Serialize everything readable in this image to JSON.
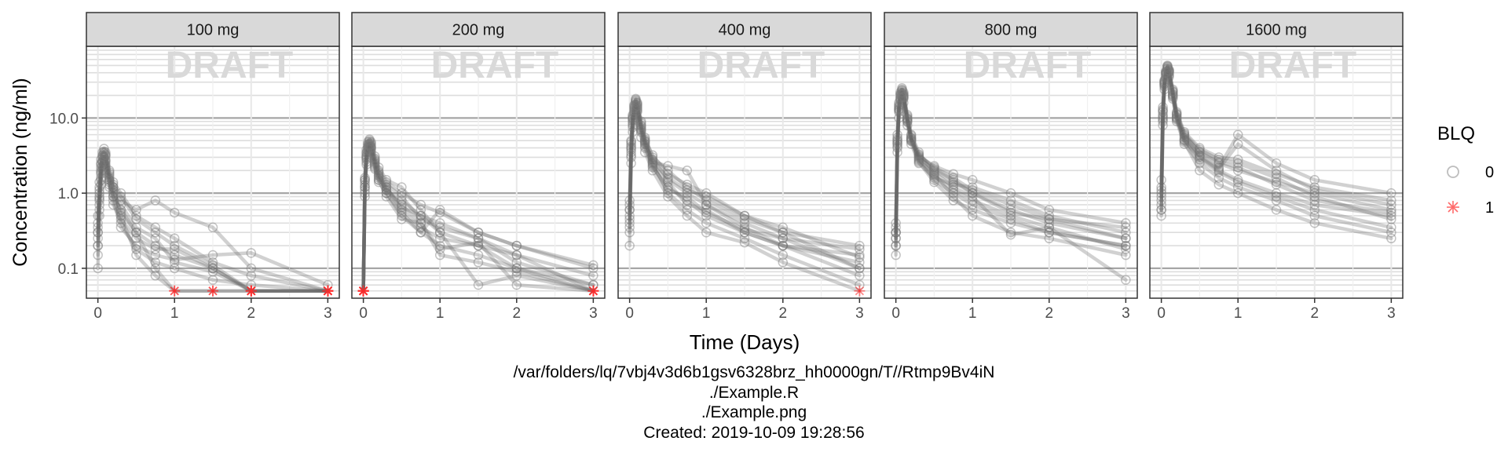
{
  "chart_data": {
    "type": "line",
    "ylabel": "Concentration (ng/ml)",
    "xlabel": "Time (Days)",
    "watermark": "DRAFT",
    "y_scale": "log10",
    "ylim": [
      0.04,
      90
    ],
    "xlim": [
      -0.15,
      3.15
    ],
    "y_ticks": [
      0.1,
      1.0,
      10.0
    ],
    "y_tick_labels": [
      "0.1",
      "1.0",
      "10.0"
    ],
    "x_ticks": [
      0,
      1,
      2,
      3
    ],
    "x_tick_labels": [
      "0",
      "1",
      "2",
      "3"
    ],
    "legend": {
      "title": "BLQ",
      "placement": "right",
      "entries": [
        {
          "label": "0",
          "symbol": "circle",
          "color": "#999999"
        },
        {
          "label": "1",
          "symbol": "asterisk",
          "color": "#ff3333"
        }
      ]
    },
    "line_color": "#666666",
    "blq_value": 0.05,
    "times": [
      0,
      0.02,
      0.04,
      0.06,
      0.08,
      0.1,
      0.15,
      0.2,
      0.3,
      0.5,
      0.75,
      1,
      1.5,
      2,
      3
    ],
    "panels": [
      {
        "label": "100 mg",
        "subjects": [
          [
            0.4,
            1.2,
            2.5,
            3.2,
            3.6,
            3.3,
            1.5,
            0.9,
            0.4,
            0.18,
            0.12,
            0.1,
            0.07,
            0.06,
            0.05
          ],
          [
            0.2,
            0.8,
            1.8,
            2.6,
            3.0,
            2.7,
            1.6,
            1.2,
            0.8,
            0.6,
            0.8,
            0.55,
            0.35,
            0.1,
            0.05
          ],
          [
            0.3,
            1.0,
            2.2,
            3.0,
            3.4,
            3.1,
            1.8,
            1.3,
            0.9,
            0.45,
            0.3,
            0.2,
            0.11,
            0.05,
            0.05
          ],
          [
            0.1,
            0.5,
            1.3,
            2.0,
            2.4,
            2.1,
            1.3,
            0.9,
            0.6,
            0.3,
            0.2,
            0.15,
            0.1,
            0.05,
            0.05
          ],
          [
            0.5,
            1.4,
            2.8,
            3.5,
            3.9,
            3.5,
            2.0,
            1.2,
            0.5,
            0.15,
            0.08,
            0.05,
            0.05,
            0.05,
            0.05
          ],
          [
            0.2,
            0.7,
            1.6,
            2.3,
            2.7,
            2.4,
            1.4,
            1.0,
            0.7,
            0.35,
            0.25,
            0.12,
            0.09,
            0.05,
            0.05
          ],
          [
            0.3,
            0.9,
            2.0,
            2.7,
            3.1,
            2.8,
            1.5,
            0.8,
            0.35,
            0.2,
            0.15,
            0.13,
            0.15,
            0.16,
            0.06
          ],
          [
            0.15,
            0.6,
            1.5,
            2.2,
            2.5,
            2.3,
            1.2,
            0.7,
            0.45,
            0.25,
            0.18,
            0.18,
            0.1,
            0.05,
            0.05
          ],
          [
            0.25,
            0.85,
            1.9,
            2.6,
            3.0,
            2.6,
            1.7,
            1.1,
            0.55,
            0.3,
            0.1,
            0.05,
            0.05,
            0.05,
            0.05
          ],
          [
            0.35,
            1.1,
            2.4,
            3.1,
            3.5,
            3.2,
            1.9,
            1.4,
            1.0,
            0.5,
            0.35,
            0.25,
            0.12,
            0.08,
            0.05
          ]
        ]
      },
      {
        "label": "200 mg",
        "subjects": [
          [
            0.05,
            1.5,
            3.5,
            4.5,
            5.0,
            4.6,
            2.8,
            1.8,
            1.0,
            0.5,
            0.3,
            0.2,
            0.15,
            0.1,
            0.05
          ],
          [
            0.05,
            1.2,
            3.0,
            4.0,
            4.4,
            4.0,
            2.5,
            1.6,
            1.1,
            0.8,
            0.5,
            0.4,
            0.25,
            0.12,
            0.06
          ],
          [
            0.05,
            1.4,
            3.2,
            4.2,
            4.6,
            4.2,
            2.9,
            2.0,
            1.4,
            1.0,
            0.7,
            0.55,
            0.3,
            0.2,
            0.1
          ],
          [
            0.05,
            1.0,
            2.6,
            3.6,
            4.0,
            3.7,
            2.2,
            1.5,
            1.2,
            0.6,
            0.35,
            0.25,
            0.2,
            0.15,
            0.05
          ],
          [
            0.05,
            1.6,
            3.8,
            4.8,
            5.2,
            4.8,
            3.1,
            2.2,
            1.5,
            1.2,
            0.6,
            0.3,
            0.06,
            0.08,
            0.05
          ],
          [
            0.05,
            1.1,
            2.8,
            3.8,
            4.2,
            3.9,
            2.4,
            1.7,
            1.3,
            0.9,
            0.45,
            0.35,
            0.25,
            0.15,
            0.08
          ],
          [
            0.05,
            1.3,
            3.1,
            4.1,
            4.5,
            4.1,
            2.6,
            1.9,
            1.1,
            0.7,
            0.4,
            0.18,
            0.22,
            0.06,
            0.05
          ],
          [
            0.05,
            0.9,
            2.4,
            3.4,
            3.8,
            3.5,
            2.1,
            1.4,
            1.0,
            0.55,
            0.3,
            0.6,
            0.3,
            0.2,
            0.11
          ],
          [
            0.05,
            1.5,
            3.4,
            4.4,
            4.8,
            4.4,
            2.7,
            1.7,
            1.2,
            0.65,
            0.5,
            0.3,
            0.2,
            0.1,
            0.06
          ],
          [
            0.05,
            1.2,
            2.9,
            3.9,
            4.3,
            4.0,
            2.3,
            1.5,
            0.9,
            0.45,
            0.4,
            0.15,
            0.12,
            0.09,
            0.05
          ]
        ]
      },
      {
        "label": "400 mg",
        "subjects": [
          [
            0.6,
            4.5,
            10,
            14,
            17,
            15,
            8.0,
            5.0,
            2.5,
            1.0,
            0.6,
            0.4,
            0.25,
            0.15,
            0.06
          ],
          [
            0.4,
            3.5,
            8.5,
            12,
            15,
            13,
            7.0,
            4.5,
            2.8,
            1.5,
            1.0,
            0.7,
            0.4,
            0.25,
            0.1
          ],
          [
            0.8,
            5.0,
            11,
            15,
            18,
            16,
            9.0,
            5.5,
            3.0,
            2.0,
            1.2,
            0.8,
            0.45,
            0.3,
            0.2
          ],
          [
            0.3,
            3.0,
            7.5,
            11,
            13,
            12,
            6.5,
            4.0,
            2.2,
            1.2,
            0.8,
            0.5,
            0.3,
            0.2,
            0.12
          ],
          [
            0.5,
            4.0,
            9.5,
            13,
            16,
            14,
            7.5,
            4.8,
            2.6,
            2.3,
            2.0,
            0.7,
            0.35,
            0.2,
            0.08
          ],
          [
            0.2,
            2.5,
            6.5,
            9.5,
            11,
            10,
            5.5,
            3.5,
            2.0,
            0.9,
            0.5,
            0.3,
            0.22,
            0.12,
            0.05
          ],
          [
            0.7,
            4.8,
            10.5,
            14.5,
            17.5,
            15.5,
            8.5,
            5.2,
            3.2,
            1.8,
            1.3,
            1.0,
            0.5,
            0.35,
            0.14
          ],
          [
            0.45,
            3.8,
            9.0,
            12.5,
            15,
            13.5,
            7.2,
            4.6,
            2.4,
            1.4,
            0.7,
            0.6,
            0.3,
            0.2,
            0.15
          ],
          [
            0.35,
            3.2,
            8.0,
            11.5,
            14,
            12.5,
            6.8,
            4.2,
            2.3,
            1.1,
            0.9,
            0.55,
            0.33,
            0.25,
            0.18
          ],
          [
            0.6,
            4.2,
            9.8,
            13.5,
            16.5,
            14.5,
            7.8,
            4.9,
            2.7,
            1.6,
            1.1,
            0.9,
            0.5,
            0.3,
            0.1
          ]
        ]
      },
      {
        "label": "800 mg",
        "subjects": [
          [
            0.3,
            5.0,
            14,
            20,
            23,
            20,
            10,
            5.5,
            2.8,
            1.5,
            1.0,
            0.7,
            0.45,
            0.3,
            0.2
          ],
          [
            0.2,
            4.0,
            12,
            17,
            20,
            18,
            9.0,
            5.0,
            3.0,
            2.0,
            1.4,
            1.0,
            0.6,
            0.4,
            0.25
          ],
          [
            0.4,
            6.0,
            16,
            22,
            25,
            22,
            11,
            6.0,
            3.5,
            1.8,
            0.9,
            0.5,
            0.3,
            0.25,
            0.15
          ],
          [
            0.15,
            3.5,
            10,
            15,
            18,
            16,
            8.0,
            4.5,
            2.5,
            1.6,
            1.3,
            1.2,
            0.8,
            0.5,
            0.3
          ],
          [
            0.3,
            5.5,
            15,
            21,
            24,
            21,
            10.5,
            5.8,
            3.2,
            2.2,
            1.6,
            1.1,
            0.7,
            0.45,
            0.25
          ],
          [
            0.25,
            4.5,
            13,
            18,
            21,
            19,
            9.5,
            5.2,
            2.9,
            1.7,
            1.1,
            0.8,
            0.5,
            0.35,
            0.18
          ],
          [
            0.35,
            5.2,
            14.5,
            20.5,
            23.5,
            20.5,
            9.8,
            5.4,
            3.1,
            2.3,
            1.8,
            1.5,
            1.0,
            0.6,
            0.4
          ],
          [
            0.2,
            4.2,
            12.5,
            17.5,
            20.5,
            18.5,
            8.8,
            4.9,
            2.7,
            1.9,
            1.2,
            0.9,
            0.28,
            0.35,
            0.07
          ],
          [
            0.3,
            4.8,
            13.5,
            19,
            22,
            19.5,
            9.2,
            5.1,
            2.6,
            1.4,
            0.8,
            0.6,
            0.4,
            0.3,
            0.2
          ],
          [
            0.25,
            4.6,
            13,
            18.5,
            21.5,
            19,
            9.6,
            5.3,
            3.3,
            2.1,
            1.5,
            1.0,
            0.55,
            0.45,
            0.35
          ]
        ]
      },
      {
        "label": "1600 mg",
        "subjects": [
          [
            0.6,
            10,
            28,
            38,
            45,
            40,
            20,
            10,
            5.0,
            3.0,
            2.0,
            1.5,
            1.0,
            0.7,
            0.5
          ],
          [
            0.8,
            12,
            30,
            40,
            48,
            42,
            22,
            11,
            6.0,
            3.5,
            2.5,
            2.0,
            1.4,
            1.0,
            0.6
          ],
          [
            1.5,
            14,
            32,
            42,
            50,
            44,
            24,
            12,
            6.5,
            4.0,
            3.0,
            2.8,
            1.8,
            1.2,
            0.8
          ],
          [
            0.5,
            8.0,
            24,
            33,
            40,
            35,
            18,
            9.0,
            4.5,
            2.5,
            1.6,
            1.2,
            0.8,
            0.5,
            0.3
          ],
          [
            1.0,
            11,
            29,
            39,
            46,
            41,
            21,
            10.5,
            5.5,
            3.2,
            2.2,
            6.0,
            2.5,
            1.5,
            1.0
          ],
          [
            0.7,
            9.0,
            26,
            35,
            42,
            37,
            19,
            9.5,
            4.8,
            2.0,
            1.3,
            1.0,
            0.6,
            0.4,
            0.25
          ],
          [
            1.2,
            13,
            31,
            41,
            49,
            43,
            23,
            11.5,
            6.2,
            3.8,
            2.8,
            2.5,
            1.6,
            0.9,
            0.45
          ],
          [
            0.9,
            10.5,
            28.5,
            38.5,
            45.5,
            40.5,
            20.5,
            10.2,
            5.2,
            3.1,
            2.1,
            4.5,
            2.0,
            1.1,
            0.7
          ],
          [
            0.6,
            9.5,
            27,
            36,
            43,
            38,
            19.5,
            9.8,
            5.1,
            2.8,
            1.9,
            1.4,
            0.9,
            0.6,
            0.35
          ],
          [
            1.1,
            12.5,
            30.5,
            40.5,
            47.5,
            42.5,
            22.5,
            11.2,
            5.8,
            3.6,
            2.6,
            2.2,
            1.3,
            0.8,
            0.55
          ]
        ]
      }
    ]
  },
  "footer": {
    "lines": [
      "/var/folders/lq/7vbj4v3d6b1gsv6328brz_hh0000gn/T//Rtmp9Bv4iN",
      "./Example.R",
      "./Example.png",
      "Created: 2019-10-09 19:28:56"
    ]
  }
}
